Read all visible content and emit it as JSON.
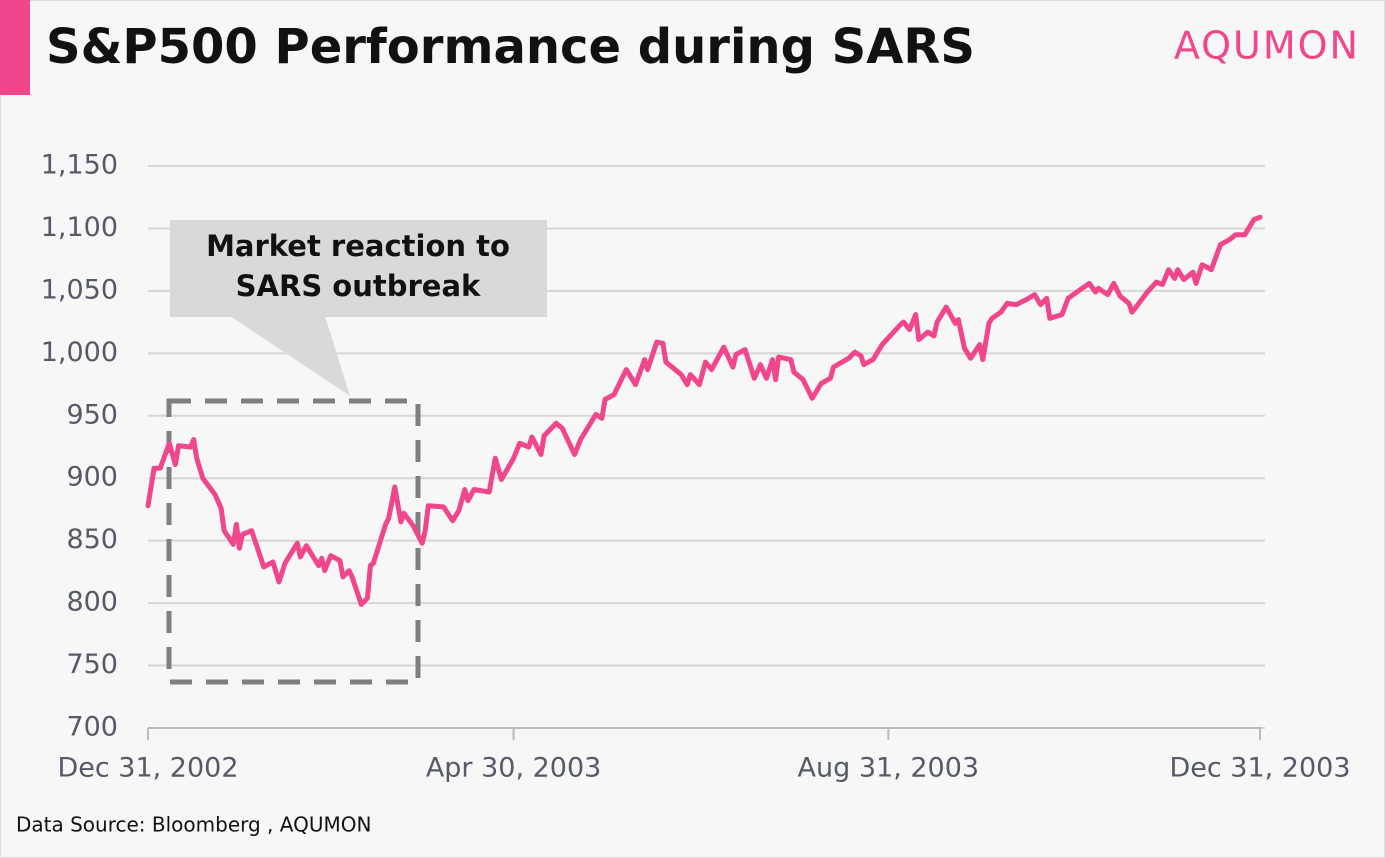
{
  "chart_data": {
    "type": "line",
    "title": "S&P500 Performance during SARS",
    "brand": "AQUMON",
    "source": "Data Source: Bloomberg , AQUMON",
    "annotation": [
      "Market reaction to",
      "SARS outbreak"
    ],
    "color": "#f0468c",
    "grid": true,
    "xlim": [
      "2002-12-31",
      "2003-12-31"
    ],
    "xticks": [
      {
        "value": "2002-12-31",
        "label": "Dec 31, 2002"
      },
      {
        "value": "2003-04-30",
        "label": "Apr 30, 2003"
      },
      {
        "value": "2003-08-31",
        "label": "Aug 31, 2003"
      },
      {
        "value": "2003-12-31",
        "label": "Dec 31, 2003"
      }
    ],
    "ylim": [
      700,
      1150
    ],
    "yticks": [
      700,
      750,
      800,
      850,
      900,
      950,
      {
        "value": 1000,
        "label": "1,000"
      },
      {
        "value": 1050,
        "label": "1,050"
      },
      {
        "value": 1100,
        "label": "1,100"
      },
      {
        "value": 1150,
        "label": "1,150"
      }
    ],
    "x": [
      "2002-12-31",
      "2003-01-02",
      "2003-01-04",
      "2003-01-07",
      "2003-01-09",
      "2003-01-10",
      "2003-01-14",
      "2003-01-15",
      "2003-01-16",
      "2003-01-18",
      "2003-01-22",
      "2003-01-24",
      "2003-01-25",
      "2003-01-28",
      "2003-01-29",
      "2003-01-30",
      "2003-01-31",
      "2003-02-03",
      "2003-02-07",
      "2003-02-10",
      "2003-02-12",
      "2003-02-14",
      "2003-02-18",
      "2003-02-19",
      "2003-02-21",
      "2003-02-25",
      "2003-02-26",
      "2003-02-27",
      "2003-03-01",
      "2003-03-04",
      "2003-03-05",
      "2003-03-07",
      "2003-03-08",
      "2003-03-11",
      "2003-03-13",
      "2003-03-14",
      "2003-03-15",
      "2003-03-19",
      "2003-03-20",
      "2003-03-22",
      "2003-03-24",
      "2003-03-25",
      "2003-03-28",
      "2003-03-31",
      "2003-04-01",
      "2003-04-02",
      "2003-04-07",
      "2003-04-10",
      "2003-04-12",
      "2003-04-14",
      "2003-04-15",
      "2003-04-17",
      "2003-04-22",
      "2003-04-24",
      "2003-04-26",
      "2003-04-30",
      "2003-05-02",
      "2003-05-05",
      "2003-05-06",
      "2003-05-09",
      "2003-05-10",
      "2003-05-14",
      "2003-05-16",
      "2003-05-20",
      "2003-05-22",
      "2003-05-27",
      "2003-05-29",
      "2003-05-30",
      "2003-06-02",
      "2003-06-06",
      "2003-06-09",
      "2003-06-12",
      "2003-06-13",
      "2003-06-16",
      "2003-06-18",
      "2003-06-19",
      "2003-06-24",
      "2003-06-26",
      "2003-06-27",
      "2003-06-30",
      "2003-07-02",
      "2003-07-04",
      "2003-07-08",
      "2003-07-11",
      "2003-07-12",
      "2003-07-15",
      "2003-07-18",
      "2003-07-20",
      "2003-07-22",
      "2003-07-24",
      "2003-07-25",
      "2003-07-26",
      "2003-07-30",
      "2003-07-31",
      "2003-08-03",
      "2003-08-06",
      "2003-08-09",
      "2003-08-12",
      "2003-08-13",
      "2003-08-18",
      "2003-08-20",
      "2003-08-22",
      "2003-08-23",
      "2003-08-26",
      "2003-08-29",
      "2003-09-04",
      "2003-09-05",
      "2003-09-07",
      "2003-09-09",
      "2003-09-10",
      "2003-09-13",
      "2003-09-15",
      "2003-09-16",
      "2003-09-19",
      "2003-09-22",
      "2003-09-23",
      "2003-09-25",
      "2003-09-27",
      "2003-09-30",
      "2003-10-01",
      "2003-10-03",
      "2003-10-04",
      "2003-10-07",
      "2003-10-09",
      "2003-10-12",
      "2003-10-16",
      "2003-10-18",
      "2003-10-20",
      "2003-10-22",
      "2003-10-23",
      "2003-10-27",
      "2003-10-29",
      "2003-11-02",
      "2003-11-05",
      "2003-11-07",
      "2003-11-08",
      "2003-11-11",
      "2003-11-13",
      "2003-11-15",
      "2003-11-18",
      "2003-11-19",
      "2003-11-20",
      "2003-11-24",
      "2003-11-27",
      "2003-11-29",
      "2003-12-01",
      "2003-12-03",
      "2003-12-04",
      "2003-12-06",
      "2003-12-09",
      "2003-12-10",
      "2003-12-12",
      "2003-12-15",
      "2003-12-18",
      "2003-12-21",
      "2003-12-23",
      "2003-12-26",
      "2003-12-29",
      "2003-12-31"
    ],
    "values": [
      878,
      908,
      908,
      928,
      911,
      926,
      925,
      931,
      916,
      900,
      887,
      876,
      858,
      847,
      863,
      844,
      855,
      858,
      829,
      833,
      817,
      832,
      848,
      837,
      846,
      830,
      836,
      826,
      838,
      834,
      821,
      826,
      821,
      799,
      804,
      830,
      832,
      863,
      868,
      893,
      865,
      872,
      862,
      848,
      858,
      878,
      877,
      866,
      874,
      891,
      882,
      891,
      889,
      916,
      899,
      916,
      928,
      925,
      933,
      919,
      934,
      944,
      940,
      919,
      931,
      951,
      948,
      963,
      967,
      987,
      975,
      995,
      987,
      1009,
      1008,
      993,
      983,
      975,
      983,
      975,
      993,
      987,
      1005,
      989,
      999,
      1003,
      980,
      991,
      980,
      995,
      979,
      997,
      995,
      985,
      979,
      964,
      976,
      980,
      989,
      996,
      1001,
      998,
      991,
      995,
      1007,
      1023,
      1025,
      1019,
      1031,
      1011,
      1017,
      1014,
      1025,
      1037,
      1024,
      1027,
      1004,
      996,
      1007,
      995,
      1024,
      1028,
      1033,
      1040,
      1039,
      1044,
      1047,
      1039,
      1044,
      1028,
      1031,
      1044,
      1051,
      1056,
      1049,
      1052,
      1047,
      1056,
      1046,
      1040,
      1033,
      1036,
      1049,
      1057,
      1055,
      1067,
      1060,
      1067,
      1059,
      1065,
      1056,
      1071,
      1067,
      1087,
      1091,
      1095,
      1095,
      1107,
      1109
    ]
  }
}
